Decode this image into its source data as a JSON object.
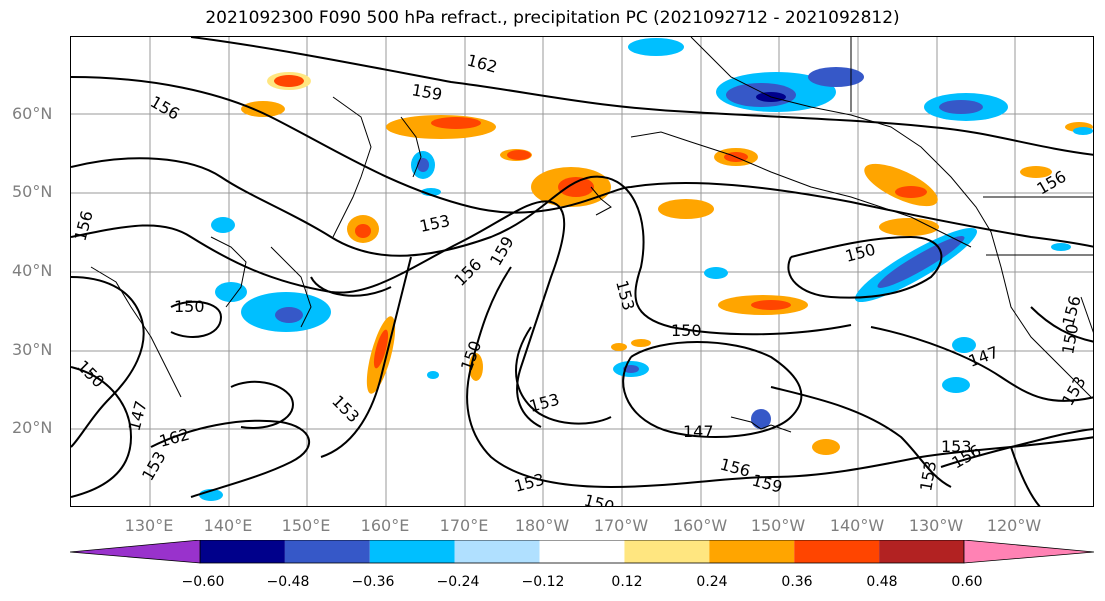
{
  "title": "2021092300 F090 500 hPa refract., precipitation PC (2021092712 - 2021092812)",
  "lat_labels": [
    "60°N",
    "50°N",
    "40°N",
    "30°N",
    "20°N"
  ],
  "lon_labels": [
    "130°E",
    "140°E",
    "150°E",
    "160°E",
    "170°E",
    "180°W",
    "170°W",
    "160°W",
    "150°W",
    "140°W",
    "130°W",
    "120°W"
  ],
  "contour_labels": [
    "162",
    "159",
    "156",
    "156",
    "153",
    "150",
    "150",
    "150",
    "156",
    "159",
    "153",
    "150",
    "153",
    "153",
    "150",
    "147",
    "156",
    "153",
    "162",
    "147",
    "153",
    "153",
    "156",
    "159",
    "153",
    "156",
    "153",
    "147",
    "150",
    "156",
    "153",
    "150",
    "156"
  ],
  "colorbar": {
    "ticks": [
      "−0.60",
      "−0.48",
      "−0.36",
      "−0.24",
      "−0.12",
      "0.12",
      "0.24",
      "0.36",
      "0.48",
      "0.60"
    ],
    "colors": [
      "#9932cc",
      "#00008b",
      "#3658c8",
      "#00bfff",
      "#b0e0ff",
      "#ffffff",
      "#ffe680",
      "#ffa500",
      "#ff4500",
      "#b22222",
      "#ff82b4"
    ]
  }
}
